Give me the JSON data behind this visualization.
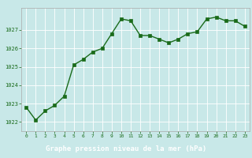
{
  "x": [
    0,
    1,
    2,
    3,
    4,
    5,
    6,
    7,
    8,
    9,
    10,
    11,
    12,
    13,
    14,
    15,
    16,
    17,
    18,
    19,
    20,
    21,
    22,
    23
  ],
  "y": [
    1022.8,
    1022.1,
    1022.6,
    1022.9,
    1023.4,
    1025.1,
    1025.4,
    1025.8,
    1026.0,
    1026.8,
    1027.6,
    1027.5,
    1026.7,
    1026.7,
    1026.5,
    1026.3,
    1026.5,
    1026.8,
    1026.9,
    1027.6,
    1027.7,
    1027.5,
    1027.5,
    1027.2
  ],
  "line_color": "#1a6b1a",
  "marker_color": "#1a6b1a",
  "bg_color": "#c8e8e8",
  "plot_bg_color": "#c8e8e8",
  "grid_color": "#ffffff",
  "xlabel": "Graphe pression niveau de la mer (hPa)",
  "xlabel_color": "#1a6b1a",
  "xlabel_bg": "#2d6b2d",
  "tick_color": "#1a6b1a",
  "ytick_labels": [
    "1022",
    "1023",
    "1024",
    "1025",
    "1026",
    "1027"
  ],
  "ytick_vals": [
    1022,
    1023,
    1024,
    1025,
    1026,
    1027
  ],
  "ylim_min": 1021.5,
  "ylim_max": 1028.2,
  "marker_size": 2.5,
  "line_width": 1.0,
  "spine_color": "#aaaaaa",
  "bottom_bar_color": "#3a7a3a",
  "bottom_text_color": "#ffffff"
}
